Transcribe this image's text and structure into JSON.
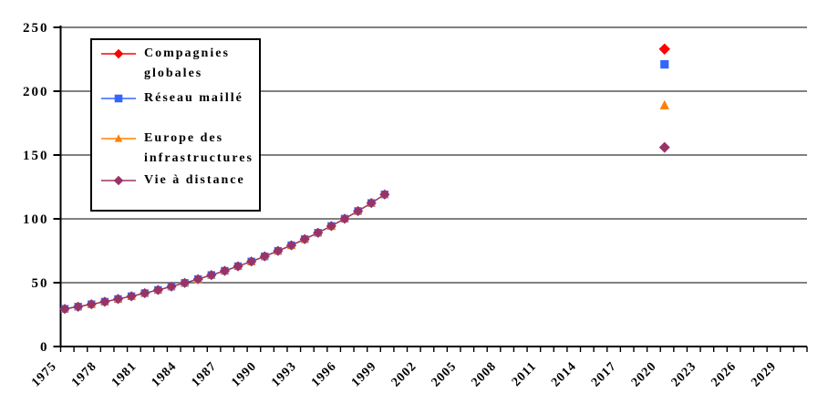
{
  "page": {
    "background": "#FFFFFF"
  },
  "chart_data": {
    "type": "line",
    "title": "",
    "grid": true,
    "legend_position": "top-left",
    "y_axis": {
      "min": 0,
      "max": 250,
      "tick_step": 50,
      "tick_labels": [
        "0",
        "50",
        "100",
        "150",
        "200",
        "250"
      ]
    },
    "x_axis": {
      "start_year": 1975,
      "end_year": 2030,
      "tick_every_years": 1,
      "label_every_years": 3,
      "tick_labels": [
        "1975",
        "1978",
        "1981",
        "1984",
        "1987",
        "1990",
        "1993",
        "1996",
        "1999",
        "2002",
        "2005",
        "2008",
        "2011",
        "2014",
        "2017",
        "2020",
        "2023",
        "2026",
        "2029"
      ]
    },
    "historical": {
      "years": [
        1975,
        1976,
        1977,
        1978,
        1979,
        1980,
        1981,
        1982,
        1983,
        1984,
        1985,
        1986,
        1987,
        1988,
        1989,
        1990,
        1991,
        1992,
        1993,
        1994,
        1995,
        1996,
        1997,
        1998,
        1999
      ],
      "values": [
        29.5,
        31.2,
        33.1,
        35.1,
        37.2,
        39.4,
        41.8,
        44.3,
        47.0,
        49.8,
        52.8,
        56.0,
        59.3,
        62.9,
        66.6,
        70.6,
        74.9,
        79.3,
        84.1,
        89.1,
        94.4,
        100.1,
        106.1,
        112.4,
        119.1
      ]
    },
    "series": [
      {
        "name": "Compagnies globales",
        "color": "#FF0000",
        "marker": "diamond",
        "scenario_point": {
          "year": 2020,
          "value": 233
        }
      },
      {
        "name": "Réseau maillé",
        "color": "#3366FF",
        "marker": "square",
        "scenario_point": {
          "year": 2020,
          "value": 221
        }
      },
      {
        "name": "Europe des infrastructures",
        "color": "#FF8000",
        "marker": "triangle",
        "scenario_point": {
          "year": 2020,
          "value": 189
        }
      },
      {
        "name": "Vie à distance",
        "color": "#993366",
        "marker": "diamond",
        "scenario_point": {
          "year": 2020,
          "value": 156
        }
      }
    ]
  }
}
